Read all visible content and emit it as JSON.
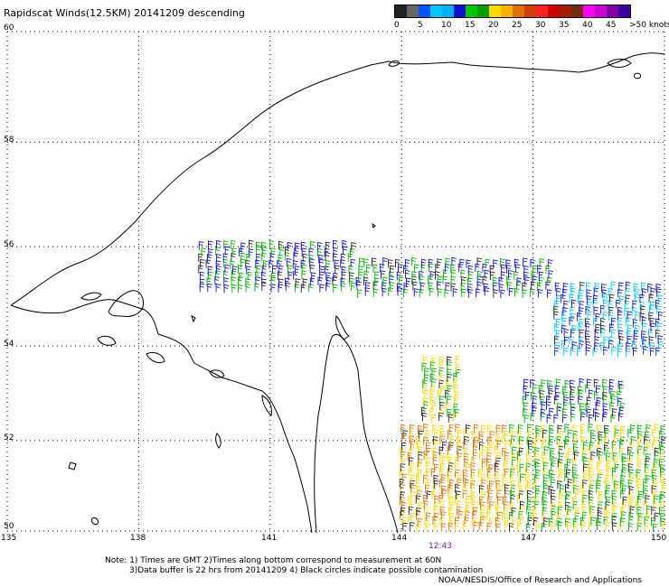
{
  "title": "Rapidscat Winds(12.5KM) 20141209 descending",
  "legend": {
    "colors": [
      "#222222",
      "#666666",
      "#0055ff",
      "#00c8ff",
      "#00b0ff",
      "#1010d0",
      "#00c800",
      "#00a000",
      "#ffd800",
      "#ffb000",
      "#e07000",
      "#d04000",
      "#ff2020",
      "#d00000",
      "#a02000",
      "#703010",
      "#ff00ff",
      "#d000d0",
      "#8000a0",
      "#4000a0"
    ],
    "labels": [
      "0",
      "5",
      "10",
      "15",
      "20",
      "25",
      "30",
      "35",
      "40",
      "45",
      ">50 knots"
    ]
  },
  "axes": {
    "lat_labels": [
      "60",
      "58",
      "56",
      "54",
      "52",
      "50"
    ],
    "lon_labels": [
      "135",
      "138",
      "141",
      "144",
      "147",
      "150"
    ],
    "lat_range": [
      50,
      60
    ],
    "lon_range": [
      135,
      150
    ]
  },
  "time_label": "12:43",
  "notes": [
    "Note: 1) Times are GMT 2)Times along bottom correspond to measurement at 60N",
    "3)Data buffer is 22 hrs from 20141209 4) Black circles indicate possible contamination"
  ],
  "credit": "NOAA/NESDIS/Office of Research and Applications",
  "map_data": {
    "type": "wind-barbs",
    "wind_regions": [
      {
        "lat_range": [
          55.1,
          56.0
        ],
        "lon_range": [
          139.4,
          143.0
        ],
        "color_knots": 15
      },
      {
        "lat_range": [
          55.0,
          55.6
        ],
        "lon_range": [
          143.0,
          147.5
        ],
        "color_knots": 15
      },
      {
        "lat_range": [
          53.8,
          55.2
        ],
        "lon_range": [
          147.5,
          150.0
        ],
        "color_knots": 10
      },
      {
        "lat_range": [
          52.4,
          53.6
        ],
        "lon_range": [
          144.5,
          145.4
        ],
        "color_knots": 20
      },
      {
        "lat_range": [
          52.4,
          53.2
        ],
        "lon_range": [
          146.8,
          149.0
        ],
        "color_knots": 15
      },
      {
        "lat_range": [
          50.0,
          52.2
        ],
        "lon_range": [
          144.0,
          146.5
        ],
        "color_knots": 25
      },
      {
        "lat_range": [
          50.0,
          52.2
        ],
        "lon_range": [
          146.5,
          150.0
        ],
        "color_knots": 20
      }
    ]
  }
}
